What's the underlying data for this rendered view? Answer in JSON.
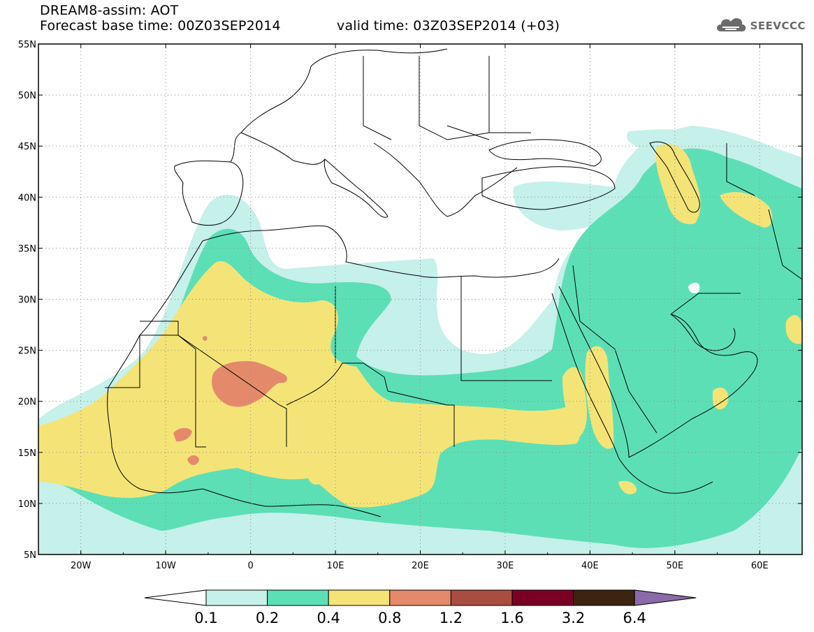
{
  "header": {
    "title_line1": "DREAM8-assim: AOT",
    "forecast_text": "Forecast base time: 00Z03SEP2014",
    "valid_text": "valid time: 03Z03SEP2014 (+03)",
    "logo_text": "SEEVCCC",
    "logo_icon": "cloud-icon"
  },
  "map": {
    "lat_labels": [
      "55N",
      "50N",
      "45N",
      "40N",
      "35N",
      "30N",
      "25N",
      "20N",
      "15N",
      "10N",
      "5N"
    ],
    "lon_labels": [
      "20W",
      "10W",
      "0",
      "10E",
      "20E",
      "30E",
      "40E",
      "50E",
      "60E"
    ],
    "lat_range": [
      5,
      55
    ],
    "lon_range": [
      -25,
      65
    ],
    "grid": "dotted",
    "projection": "lat-lon"
  },
  "colorbar": {
    "labels": [
      "0.1",
      "0.2",
      "0.4",
      "0.8",
      "1.2",
      "1.6",
      "3.2",
      "6.4"
    ],
    "colors": [
      "#ffffff",
      "#c6f0ea",
      "#5ddfb6",
      "#f4e477",
      "#e48a6b",
      "#a94d40",
      "#7a0024",
      "#3b2410",
      "#8a6aa8"
    ]
  },
  "colors": {
    "level1": "#c6f0ea",
    "level2": "#5ddfb6",
    "level3": "#f4e477",
    "level4": "#e48a6b",
    "borders": "#000000"
  }
}
